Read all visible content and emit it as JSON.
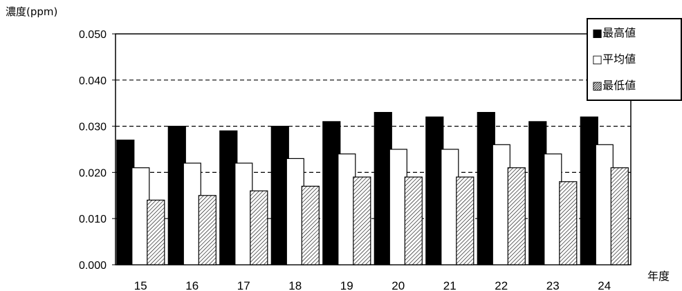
{
  "chart_data": {
    "type": "bar",
    "ylabel": "濃度(ppm)",
    "xlabel": "年度",
    "categories": [
      "15",
      "16",
      "17",
      "18",
      "19",
      "20",
      "21",
      "22",
      "23",
      "24"
    ],
    "ylim": [
      0,
      0.05
    ],
    "yticks": [
      "0.000",
      "0.010",
      "0.020",
      "0.030",
      "0.040",
      "0.050"
    ],
    "ytick_values": [
      0,
      0.01,
      0.02,
      0.03,
      0.04,
      0.05
    ],
    "grid": "dashed horizontal",
    "legend_position": "top-right",
    "series": [
      {
        "name": "■最高値",
        "style": "solid-black",
        "values": [
          0.027,
          0.03,
          0.029,
          0.03,
          0.031,
          0.033,
          0.032,
          0.033,
          0.031,
          0.032
        ]
      },
      {
        "name": "□平均値",
        "style": "white",
        "values": [
          0.021,
          0.022,
          0.022,
          0.023,
          0.024,
          0.025,
          0.025,
          0.026,
          0.024,
          0.026
        ]
      },
      {
        "name": "▨最低値",
        "style": "hatched",
        "values": [
          0.014,
          0.015,
          0.016,
          0.017,
          0.019,
          0.019,
          0.019,
          0.021,
          0.018,
          0.021
        ]
      }
    ]
  }
}
